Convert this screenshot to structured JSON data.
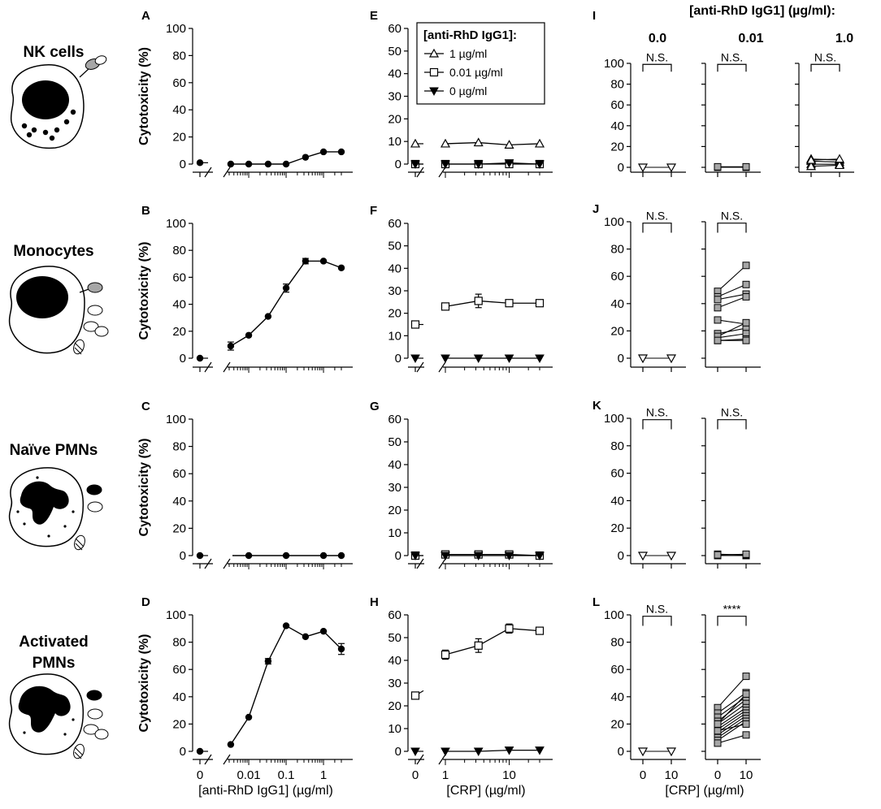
{
  "rows": [
    {
      "key": "nk",
      "label_lines": [
        "NK cells"
      ]
    },
    {
      "key": "mono",
      "label_lines": [
        "Monocytes"
      ]
    },
    {
      "key": "naive",
      "label_lines": [
        "Naïve PMNs"
      ]
    },
    {
      "key": "act",
      "label_lines": [
        "Activated",
        "PMNs"
      ]
    }
  ],
  "ylabel": "Cytotoxicity  (%)",
  "xlabels": {
    "left": "[anti-RhD IgG1] (µg/ml)",
    "middle": "[CRP] (µg/ml)",
    "right": "[CRP] (µg/ml)"
  },
  "legend": {
    "title": "[anti-RhD IgG1]:",
    "items": [
      "1 µg/ml",
      "0.01 µg/ml",
      "0 µg/ml"
    ]
  },
  "column_header": {
    "title": "[anti-RhD IgG1] (µg/ml):",
    "conditions": [
      "0.0",
      "0.01",
      "1.0"
    ]
  },
  "colors": {
    "ink": "#000000",
    "marker_fill_gray": "#a6a6a6"
  },
  "chart_data": [
    {
      "panel": "A",
      "type": "line",
      "row": "nk",
      "ylim": [
        0,
        100
      ],
      "yticks": [
        "0",
        "20",
        "40",
        "60",
        "80",
        "100"
      ],
      "xscale": "log",
      "xlim": [
        0.003,
        3
      ],
      "xticks": [
        "0.01",
        "0.1",
        "1"
      ],
      "show_xticks": false,
      "zero_label": "0",
      "zero_value": 1,
      "x": [
        0.0033,
        0.01,
        0.033,
        0.1,
        0.33,
        1,
        3
      ],
      "y": [
        0,
        0,
        0,
        0,
        5,
        9,
        9
      ],
      "err": [
        0,
        0,
        0,
        0,
        0,
        0,
        0
      ]
    },
    {
      "panel": "B",
      "type": "line",
      "row": "mono",
      "ylim": [
        0,
        100
      ],
      "yticks": [
        "0",
        "20",
        "40",
        "60",
        "80",
        "100"
      ],
      "xscale": "log",
      "xlim": [
        0.003,
        3
      ],
      "xticks": [
        "0.01",
        "0.1",
        "1"
      ],
      "show_xticks": false,
      "zero_label": "0",
      "zero_value": 0,
      "x": [
        0.0033,
        0.01,
        0.033,
        0.1,
        0.33,
        1,
        3
      ],
      "y": [
        9,
        17,
        31,
        52,
        72,
        72,
        67
      ],
      "err": [
        3,
        0,
        0,
        3,
        2,
        0,
        0
      ]
    },
    {
      "panel": "C",
      "type": "line",
      "row": "naive",
      "ylim": [
        0,
        100
      ],
      "yticks": [
        "0",
        "20",
        "40",
        "60",
        "80",
        "100"
      ],
      "xscale": "log",
      "xlim": [
        0.003,
        3
      ],
      "xticks": [
        "0.01",
        "0.1",
        "1"
      ],
      "show_xticks": false,
      "zero_label": "0",
      "zero_value": 0,
      "x": [
        0.01,
        0.1,
        1,
        3
      ],
      "y": [
        0,
        0,
        0,
        0
      ],
      "err": [
        0,
        0,
        0,
        0
      ]
    },
    {
      "panel": "D",
      "type": "line",
      "row": "act",
      "ylim": [
        0,
        100
      ],
      "yticks": [
        "0",
        "20",
        "40",
        "60",
        "80",
        "100"
      ],
      "xscale": "log",
      "xlim": [
        0.003,
        3
      ],
      "xticks": [
        "0.01",
        "0.1",
        "1"
      ],
      "show_xticks": true,
      "zero_label": "0",
      "zero_value": 0,
      "x": [
        0.0033,
        0.01,
        0.033,
        0.1,
        0.33,
        1,
        3
      ],
      "y": [
        5,
        25,
        66,
        92,
        84,
        88,
        75
      ],
      "err": [
        0,
        0,
        2,
        0,
        0,
        0,
        4
      ]
    },
    {
      "panel": "E",
      "type": "line",
      "row": "nk",
      "ylim": [
        0,
        60
      ],
      "yticks": [
        "0",
        "10",
        "20",
        "30",
        "40",
        "50",
        "60"
      ],
      "xscale": "log",
      "xlim": [
        1,
        30
      ],
      "xticks": [
        "1",
        "10"
      ],
      "show_xticks": false,
      "zero_label": "0",
      "x": [
        1,
        3.3,
        10,
        30
      ],
      "series": [
        {
          "name": "1 µg/ml",
          "marker": "triangle-up-open",
          "zero": 9,
          "values": [
            9,
            9.5,
            8.5,
            9
          ],
          "err": [
            0,
            0,
            0,
            0
          ]
        },
        {
          "name": "0.01 µg/ml",
          "marker": "square-open",
          "zero": 0,
          "values": [
            0,
            0,
            0,
            0
          ],
          "err": [
            0,
            0,
            0,
            0
          ]
        },
        {
          "name": "0 µg/ml",
          "marker": "triangle-down-filled",
          "zero": 0,
          "values": [
            0,
            0,
            0.5,
            0
          ],
          "err": [
            0,
            0,
            0,
            0
          ]
        }
      ]
    },
    {
      "panel": "F",
      "type": "line",
      "row": "mono",
      "ylim": [
        0,
        60
      ],
      "yticks": [
        "0",
        "10",
        "20",
        "30",
        "40",
        "50",
        "60"
      ],
      "xscale": "log",
      "xlim": [
        1,
        30
      ],
      "xticks": [
        "1",
        "10"
      ],
      "show_xticks": false,
      "zero_label": "0",
      "x": [
        1,
        3.3,
        10,
        30
      ],
      "series": [
        {
          "name": "0.01 µg/ml",
          "marker": "square-open",
          "zero": 15,
          "values": [
            23,
            25.5,
            24.5,
            24.5
          ],
          "err": [
            1,
            3,
            0,
            0
          ]
        },
        {
          "name": "0 µg/ml",
          "marker": "triangle-down-filled",
          "zero": 0,
          "values": [
            0,
            0,
            0,
            0
          ],
          "err": [
            0,
            0,
            0,
            0
          ]
        }
      ]
    },
    {
      "panel": "G",
      "type": "line",
      "row": "naive",
      "ylim": [
        0,
        60
      ],
      "yticks": [
        "0",
        "10",
        "20",
        "30",
        "40",
        "50",
        "60"
      ],
      "xscale": "log",
      "xlim": [
        1,
        30
      ],
      "xticks": [
        "1",
        "10"
      ],
      "show_xticks": false,
      "zero_label": "0",
      "x": [
        1,
        3.3,
        10,
        30
      ],
      "series": [
        {
          "name": "0.01 µg/ml",
          "marker": "square-open",
          "zero": 0,
          "values": [
            0.5,
            0.5,
            0.5,
            0
          ],
          "err": [
            0,
            0,
            0,
            0
          ]
        },
        {
          "name": "0 µg/ml",
          "marker": "triangle-down-filled",
          "zero": 0,
          "values": [
            0,
            0,
            0,
            0
          ],
          "err": [
            0,
            0,
            0,
            0
          ]
        }
      ]
    },
    {
      "panel": "H",
      "type": "line",
      "row": "act",
      "ylim": [
        0,
        60
      ],
      "yticks": [
        "0",
        "10",
        "20",
        "30",
        "40",
        "50",
        "60"
      ],
      "xscale": "log",
      "xlim": [
        1,
        30
      ],
      "xticks": [
        "1",
        "10"
      ],
      "show_xticks": true,
      "zero_label": "0",
      "x": [
        1,
        3.3,
        10,
        30
      ],
      "series": [
        {
          "name": "0.01 µg/ml",
          "marker": "square-open",
          "zero": 24.5,
          "values": [
            42.5,
            46.5,
            54,
            53
          ],
          "err": [
            2,
            3,
            2,
            1
          ]
        },
        {
          "name": "0 µg/ml",
          "marker": "triangle-down-filled",
          "zero": 0,
          "values": [
            0,
            0,
            0.5,
            0.5
          ],
          "err": [
            0,
            0,
            0,
            0
          ]
        }
      ]
    },
    {
      "panel": "I",
      "type": "scatter",
      "row": "nk",
      "ylim": [
        0,
        100
      ],
      "yticks": [
        "0",
        "20",
        "40",
        "60",
        "80",
        "100"
      ],
      "xticks": [
        "0",
        "10"
      ],
      "show_xticks": false,
      "groups": [
        {
          "condition": "0.0",
          "marker": "triangle-down-open",
          "significance": "N.S.",
          "pairs": [
            [
              0,
              0
            ]
          ]
        },
        {
          "condition": "0.01",
          "marker": "square-open",
          "significance": "N.S.",
          "pairs": [
            [
              0,
              0
            ],
            [
              0.5,
              0.5
            ]
          ]
        },
        {
          "condition": "1.0",
          "marker": "triangle-up-open",
          "significance": "N.S.",
          "pairs": [
            [
              8,
              7
            ],
            [
              6,
              5
            ],
            [
              3,
              3
            ],
            [
              1,
              2
            ],
            [
              7,
              8
            ]
          ]
        }
      ]
    },
    {
      "panel": "J",
      "type": "scatter",
      "row": "mono",
      "ylim": [
        0,
        100
      ],
      "yticks": [
        "0",
        "20",
        "40",
        "60",
        "80",
        "100"
      ],
      "xticks": [
        "0",
        "10"
      ],
      "show_xticks": false,
      "groups": [
        {
          "condition": "0.0",
          "marker": "triangle-down-open",
          "significance": "N.S.",
          "pairs": [
            [
              0,
              0
            ]
          ]
        },
        {
          "condition": "0.01",
          "marker": "square-open",
          "significance": "N.S.",
          "pairs": [
            [
              49,
              68
            ],
            [
              45,
              54
            ],
            [
              43,
              47
            ],
            [
              37,
              45
            ],
            [
              28,
              25
            ],
            [
              18,
              22
            ],
            [
              15,
              18
            ],
            [
              13,
              14
            ],
            [
              16,
              26
            ],
            [
              13,
              13
            ]
          ]
        }
      ]
    },
    {
      "panel": "K",
      "type": "scatter",
      "row": "naive",
      "ylim": [
        0,
        100
      ],
      "yticks": [
        "0",
        "20",
        "40",
        "60",
        "80",
        "100"
      ],
      "xticks": [
        "0",
        "10"
      ],
      "show_xticks": false,
      "groups": [
        {
          "condition": "0.0",
          "marker": "triangle-down-open",
          "significance": "N.S.",
          "pairs": [
            [
              0,
              0
            ]
          ]
        },
        {
          "condition": "0.01",
          "marker": "square-open",
          "significance": "N.S.",
          "pairs": [
            [
              0,
              0
            ],
            [
              1,
              0.5
            ],
            [
              0.5,
              1
            ]
          ]
        }
      ]
    },
    {
      "panel": "L",
      "type": "scatter",
      "row": "act",
      "ylim": [
        0,
        100
      ],
      "yticks": [
        "0",
        "20",
        "40",
        "60",
        "80",
        "100"
      ],
      "xticks": [
        "0",
        "10"
      ],
      "show_xticks": true,
      "groups": [
        {
          "condition": "0.0",
          "marker": "triangle-down-open",
          "significance": "N.S.",
          "pairs": [
            [
              0,
              0
            ]
          ]
        },
        {
          "condition": "0.01",
          "marker": "square-open",
          "significance": "****",
          "pairs": [
            [
              32,
              55
            ],
            [
              28,
              43
            ],
            [
              25,
              40
            ],
            [
              22,
              38
            ],
            [
              20,
              35
            ],
            [
              18,
              32
            ],
            [
              16,
              30
            ],
            [
              14,
              28
            ],
            [
              12,
              26
            ],
            [
              10,
              24
            ],
            [
              8,
              22
            ],
            [
              6,
              12
            ],
            [
              20,
              42
            ],
            [
              15,
              20
            ]
          ]
        }
      ]
    }
  ]
}
